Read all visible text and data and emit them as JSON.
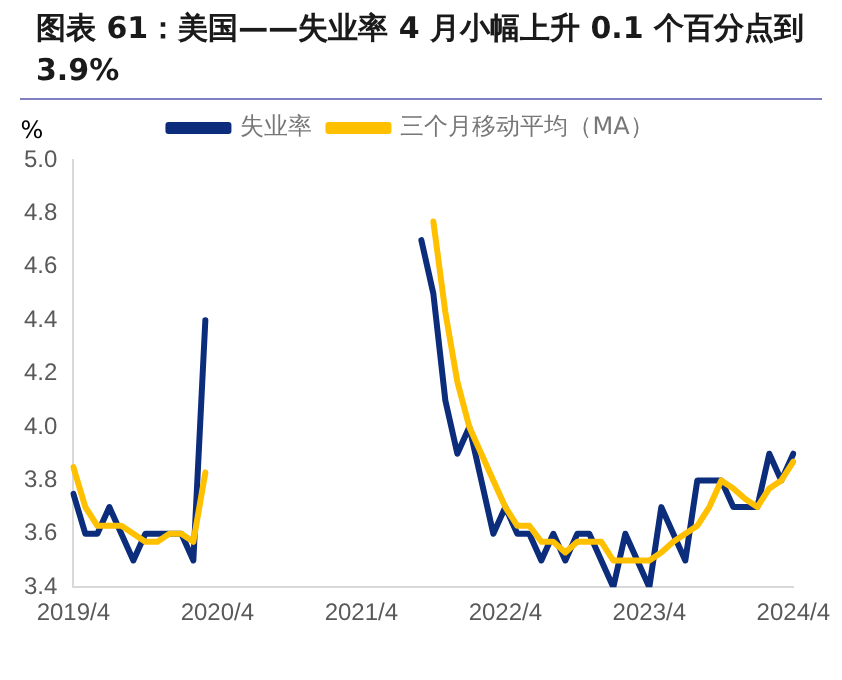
{
  "chart_data": {
    "type": "line",
    "title": "图表 61：美国——失业率 4 月小幅上升 0.1 个百分点到 3.9%",
    "ylabel": "%",
    "categories": [
      "2019/4",
      null,
      null,
      null,
      null,
      null,
      null,
      null,
      null,
      null,
      null,
      null,
      "2020/4",
      null,
      null,
      null,
      null,
      null,
      null,
      null,
      null,
      null,
      null,
      null,
      "2021/4",
      null,
      null,
      null,
      null,
      null,
      null,
      null,
      null,
      null,
      null,
      null,
      "2022/4",
      null,
      null,
      null,
      null,
      null,
      null,
      null,
      null,
      null,
      null,
      null,
      "2023/4",
      null,
      null,
      null,
      null,
      null,
      null,
      null,
      null,
      null,
      null,
      null,
      "2024/4"
    ],
    "series": [
      {
        "name": "失业率",
        "color": "#0b2d7c",
        "values": [
          3.75,
          3.6,
          3.6,
          3.7,
          3.6,
          3.5,
          3.6,
          3.6,
          3.6,
          3.6,
          3.5,
          4.4,
          null,
          null,
          null,
          null,
          null,
          null,
          null,
          null,
          null,
          null,
          null,
          null,
          null,
          null,
          null,
          null,
          null,
          4.7,
          4.5,
          4.1,
          3.9,
          4.0,
          3.8,
          3.6,
          3.7,
          3.6,
          3.6,
          3.5,
          3.6,
          3.5,
          3.6,
          3.6,
          3.5,
          3.4,
          3.6,
          3.5,
          3.4,
          3.7,
          3.6,
          3.5,
          3.8,
          3.8,
          3.8,
          3.7,
          3.7,
          3.7,
          3.9,
          3.8,
          3.9
        ]
      },
      {
        "name": "三个月移动平均（MA）",
        "color": "#ffc000",
        "values": [
          3.85,
          3.7,
          3.63,
          3.63,
          3.63,
          3.6,
          3.57,
          3.57,
          3.6,
          3.6,
          3.57,
          3.83,
          null,
          null,
          null,
          null,
          null,
          null,
          null,
          null,
          null,
          null,
          null,
          null,
          null,
          null,
          null,
          null,
          null,
          null,
          4.77,
          4.43,
          4.17,
          4.0,
          3.9,
          3.8,
          3.7,
          3.63,
          3.63,
          3.57,
          3.57,
          3.53,
          3.57,
          3.57,
          3.57,
          3.5,
          3.5,
          3.5,
          3.5,
          3.53,
          3.57,
          3.6,
          3.63,
          3.7,
          3.8,
          3.77,
          3.73,
          3.7,
          3.77,
          3.8,
          3.87
        ]
      }
    ],
    "ylim": [
      3.4,
      5.0
    ],
    "yticks": [
      3.4,
      3.6,
      3.8,
      {
        "value": 4,
        "label": "4.0"
      },
      4.2,
      4.4,
      4.6,
      4.8,
      {
        "value": 5,
        "label": "5.0"
      }
    ],
    "grid": false,
    "legend": "top",
    "marker": "none",
    "line_style": "solid"
  }
}
